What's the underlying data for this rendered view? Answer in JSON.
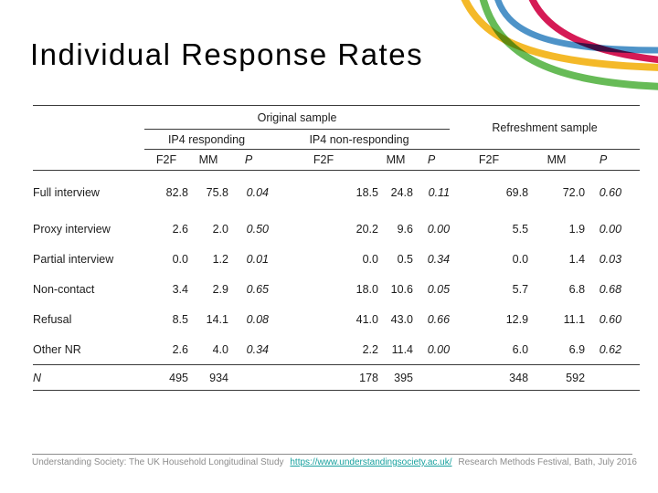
{
  "title": "Individual Response Rates",
  "table": {
    "groups": {
      "original": "Original sample",
      "refreshment": "Refreshment sample",
      "responding": "IP4 responding",
      "non_responding": "IP4 non-responding"
    },
    "sub_headers": [
      "F2F",
      "MM",
      "P"
    ],
    "rows": [
      {
        "label": "Full interview",
        "italic": false,
        "rule_below": false,
        "values": [
          "82.8",
          "75.8",
          "0.04",
          "18.5",
          "24.8",
          "0.11",
          "69.8",
          "72.0",
          "0.60"
        ]
      },
      {
        "label": "Proxy interview",
        "italic": false,
        "rule_below": false,
        "values": [
          "2.6",
          "2.0",
          "0.50",
          "20.2",
          "9.6",
          "0.00",
          "5.5",
          "1.9",
          "0.00"
        ]
      },
      {
        "label": "Partial interview",
        "italic": false,
        "rule_below": false,
        "values": [
          "0.0",
          "1.2",
          "0.01",
          "0.0",
          "0.5",
          "0.34",
          "0.0",
          "1.4",
          "0.03"
        ]
      },
      {
        "label": "Non-contact",
        "italic": false,
        "rule_below": false,
        "values": [
          "3.4",
          "2.9",
          "0.65",
          "18.0",
          "10.6",
          "0.05",
          "5.7",
          "6.8",
          "0.68"
        ]
      },
      {
        "label": "Refusal",
        "italic": false,
        "rule_below": false,
        "values": [
          "8.5",
          "14.1",
          "0.08",
          "41.0",
          "43.0",
          "0.66",
          "12.9",
          "11.1",
          "0.60"
        ]
      },
      {
        "label": "Other NR",
        "italic": false,
        "rule_below": true,
        "values": [
          "2.6",
          "4.0",
          "0.34",
          "2.2",
          "11.4",
          "0.00",
          "6.0",
          "6.9",
          "0.62"
        ]
      },
      {
        "label": "N",
        "italic": true,
        "rule_below": true,
        "values": [
          "495",
          "934",
          "",
          "178",
          "395",
          "",
          "348",
          "592",
          ""
        ]
      }
    ]
  },
  "footer": {
    "left": "Understanding Society: The UK Household Longitudinal Study",
    "link": "https://www.understandingsociety.ac.uk/",
    "right": "Research Methods Festival, Bath, July 2016",
    "link_color": "#17a09e",
    "text_color": "#8c8c8c"
  },
  "decoration": {
    "blue": "#4e93c8",
    "crimson": "#d51a55",
    "yellow": "#f4b929",
    "green": "#67bb57"
  }
}
